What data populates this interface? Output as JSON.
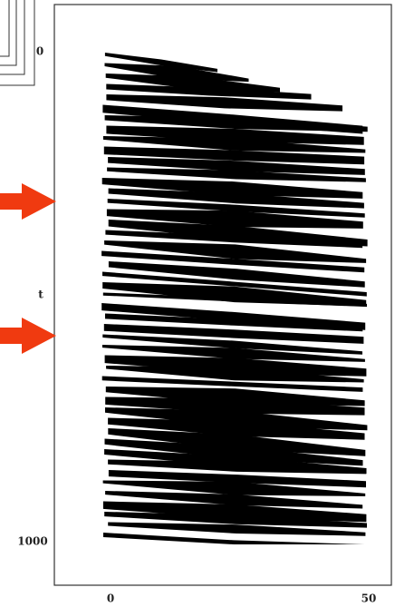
{
  "axes": {
    "y_top": "0",
    "y_label": "t",
    "y_bottom": "1000",
    "x_left": "0",
    "x_right": "50"
  }
}
